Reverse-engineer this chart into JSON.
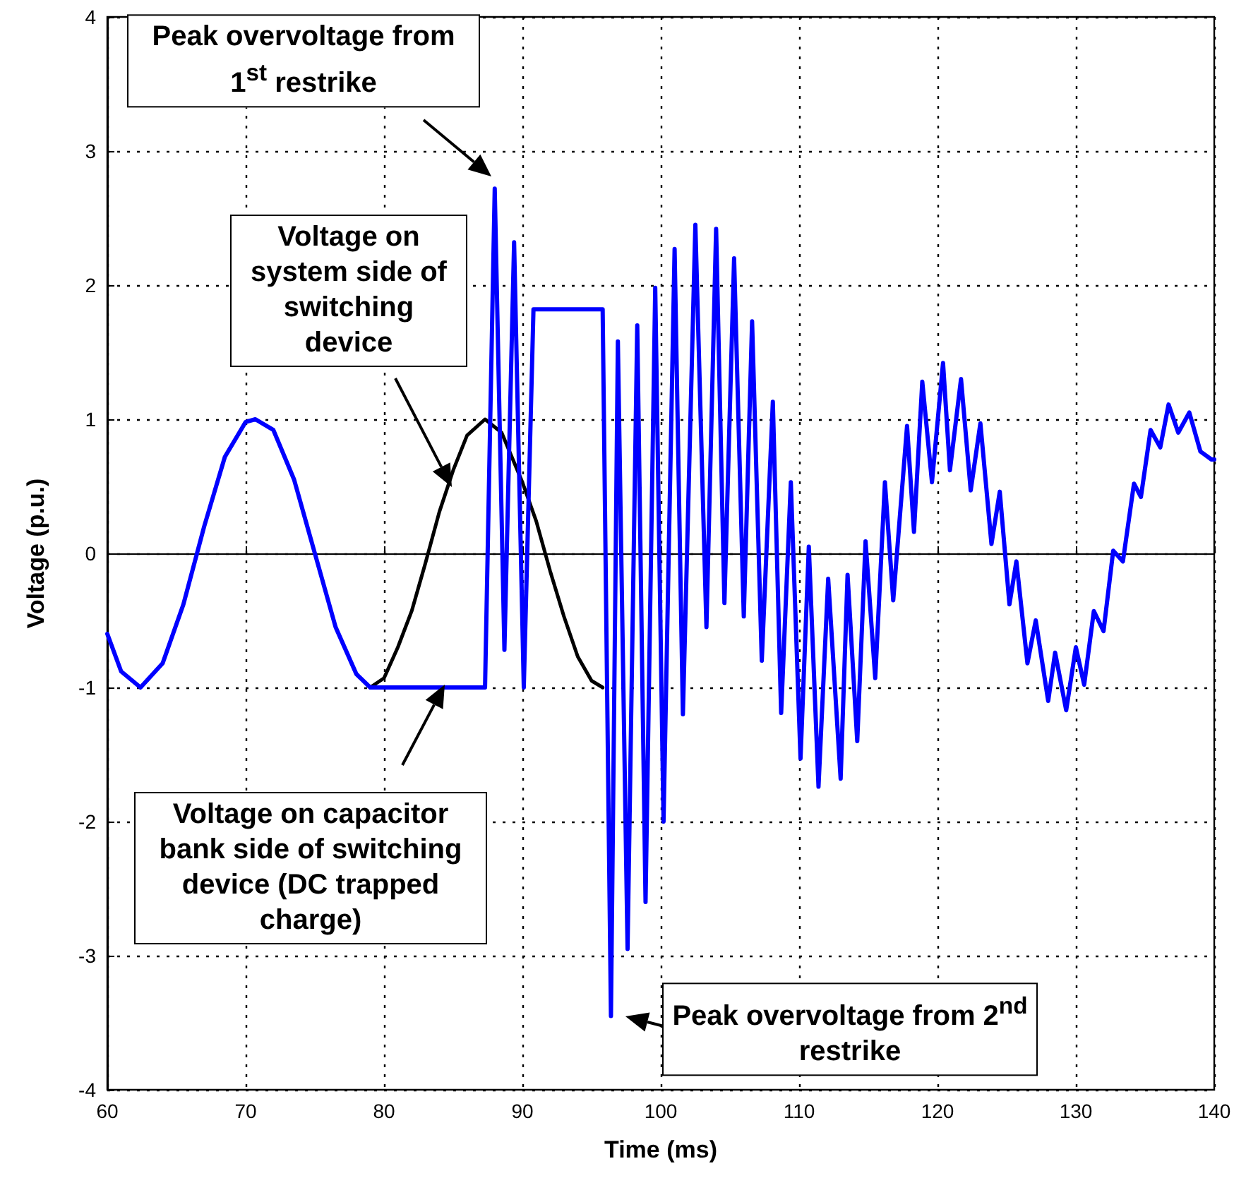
{
  "chart_data": {
    "type": "line",
    "xlabel": "Time (ms)",
    "ylabel": "Voltage (p.u.)",
    "xlim": [
      60,
      140
    ],
    "xticks": [
      60,
      70,
      80,
      90,
      100,
      110,
      120,
      130,
      140
    ],
    "ylim": [
      -4,
      4
    ],
    "yticks": [
      -4,
      -3,
      -2,
      -1,
      0,
      1,
      2,
      3,
      4
    ],
    "grid": true,
    "marker": "none",
    "line_style": "solid",
    "series": [
      {
        "color": "#000000",
        "x": [
          79,
          80,
          81,
          82,
          83,
          84,
          85,
          86,
          87.3,
          88.5,
          90,
          91,
          92,
          93,
          94,
          95,
          95.8
        ],
        "values": [
          -1,
          -0.93,
          -0.7,
          -0.43,
          -0.07,
          0.31,
          0.62,
          0.88,
          1,
          0.9,
          0.53,
          0.24,
          -0.13,
          -0.47,
          -0.77,
          -0.95,
          -1
        ]
      },
      {
        "color": "#0000ff",
        "x": [
          60,
          61,
          62.4,
          64,
          65.5,
          67,
          68.5,
          70,
          70.7,
          72,
          73.5,
          75,
          76.5,
          78,
          79,
          87.3,
          88,
          88.7,
          89.4,
          90.1,
          90.8,
          95.8,
          96.4,
          96.9,
          97.6,
          98.3,
          98.9,
          99.6,
          100.2,
          101,
          101.6,
          102.5,
          103.3,
          104,
          104.6,
          105.3,
          106,
          106.6,
          107.3,
          108.1,
          108.7,
          109.4,
          110.1,
          110.7,
          111.4,
          112.1,
          113,
          113.5,
          114.2,
          114.8,
          115.5,
          116.2,
          116.8,
          117.8,
          118.3,
          118.9,
          119.6,
          120.4,
          120.9,
          121.7,
          122.4,
          123.1,
          123.9,
          124.5,
          125.2,
          125.7,
          126.5,
          127.1,
          128,
          128.5,
          129.3,
          130,
          130.6,
          131.3,
          132,
          132.7,
          133.4,
          134.2,
          134.7,
          135.4,
          136.1,
          136.7,
          137.4,
          138.2,
          139,
          139.8,
          140
        ],
        "values": [
          -0.6,
          -0.88,
          -1,
          -0.82,
          -0.38,
          0.2,
          0.72,
          0.98,
          1,
          0.92,
          0.55,
          0,
          -0.55,
          -0.9,
          -1,
          -1,
          2.72,
          -0.72,
          2.32,
          -1,
          1.82,
          1.82,
          -3.45,
          1.58,
          -2.95,
          1.7,
          -2.6,
          1.98,
          -2,
          2.27,
          -1.2,
          2.45,
          -0.55,
          2.42,
          -0.37,
          2.2,
          -0.47,
          1.73,
          -0.8,
          1.13,
          -1.19,
          0.53,
          -1.53,
          0.05,
          -1.74,
          -0.19,
          -1.68,
          -0.16,
          -1.4,
          0.09,
          -0.93,
          0.53,
          -0.35,
          0.95,
          0.16,
          1.28,
          0.53,
          1.42,
          0.62,
          1.3,
          0.47,
          0.97,
          0.07,
          0.46,
          -0.38,
          -0.06,
          -0.82,
          -0.5,
          -1.1,
          -0.74,
          -1.17,
          -0.7,
          -0.98,
          -0.43,
          -0.58,
          0.02,
          -0.06,
          0.52,
          0.42,
          0.92,
          0.79,
          1.11,
          0.9,
          1.05,
          0.76,
          0.7,
          0.7
        ]
      }
    ],
    "annotations": [
      "Peak overvoltage from 1$^{st}$ restrike",
      "Voltage on system side of switching device",
      "Voltage on capacitor bank side of switching device (DC trapped charge)",
      "Peak overvoltage from 2$^{nd}$ restrike"
    ]
  }
}
